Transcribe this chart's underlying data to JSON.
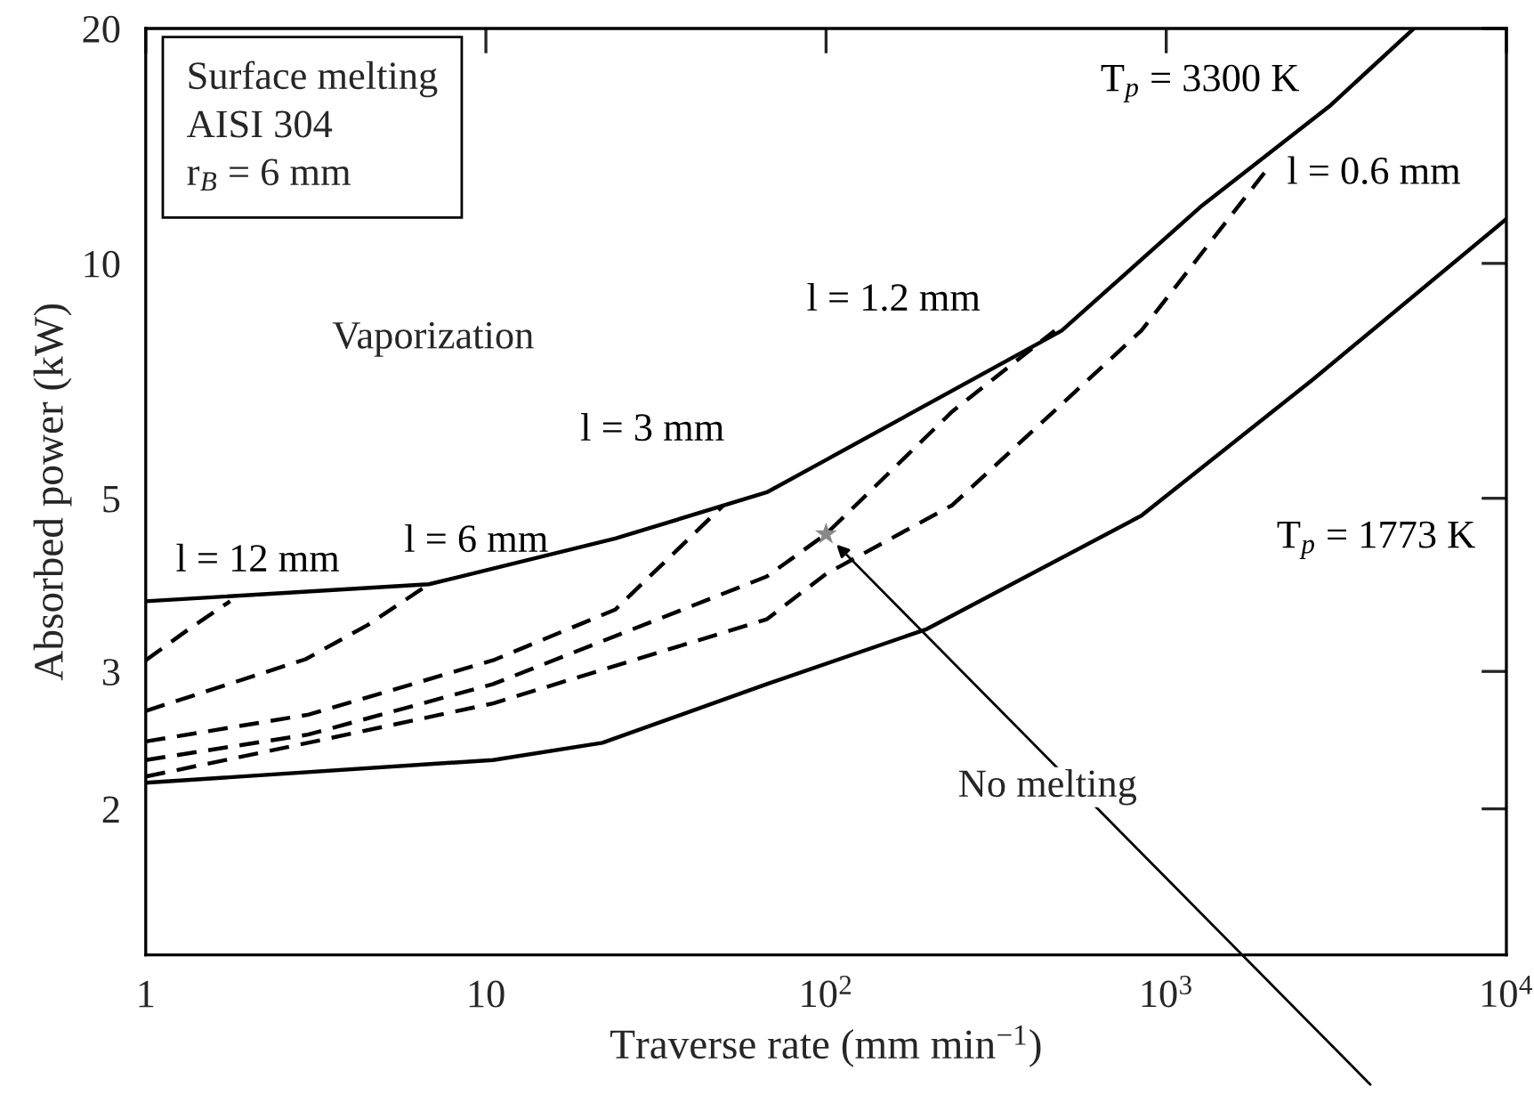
{
  "chart_data": {
    "type": "line",
    "xlabel": "Traverse rate (mm min$^{−1}$)",
    "ylabel": "Absorbed power (kW)",
    "log": "xy",
    "xlim": [
      1,
      10000
    ],
    "ylim": [
      1.3,
      20
    ],
    "xticks": [
      1,
      10,
      {
        "value": 100,
        "label": "10$^{2}$"
      },
      {
        "value": 1000,
        "label": "10$^{3}$"
      },
      {
        "value": 10000,
        "label": "10$^{4}$"
      }
    ],
    "yticks": [
      2,
      3,
      5,
      10,
      20
    ],
    "grid": false,
    "marker": "none",
    "series": [
      {
        "name": "T$_{p}$ = 3300 K",
        "color": "#000000",
        "line_style": "solid",
        "x": [
          1,
          6.8,
          24,
          67,
          100,
          493,
          1257,
          3020,
          5350
        ],
        "values": [
          3.69,
          3.88,
          4.44,
          5.09,
          5.6,
          8.2,
          11.8,
          15.9,
          20
        ]
      },
      {
        "name": "T$_{p}$ = 1773 K",
        "color": "#000000",
        "line_style": "solid",
        "x": [
          1,
          10.5,
          22,
          67,
          198,
          845,
          2700,
          10000
        ],
        "values": [
          2.16,
          2.31,
          2.43,
          2.89,
          3.4,
          4.75,
          7.1,
          11.4
        ]
      },
      {
        "name": "l = 12 mm",
        "color": "#000000",
        "line_style": "dashed",
        "x": [
          1,
          1.34,
          1.77
        ],
        "values": [
          3.1,
          3.4,
          3.69
        ]
      },
      {
        "name": "l = 6 mm",
        "color": "#000000",
        "line_style": "dashed",
        "x": [
          1,
          2.95,
          4.49,
          6.8
        ],
        "values": [
          2.67,
          3.11,
          3.44,
          3.88
        ]
      },
      {
        "name": "l = 3 mm",
        "color": "#000000",
        "line_style": "dashed",
        "x": [
          1,
          3,
          10.5,
          24,
          50
        ],
        "values": [
          2.44,
          2.64,
          3.1,
          3.6,
          4.9
        ]
      },
      {
        "name": "l = 1.2 mm",
        "color": "#000000",
        "line_style": "dashed",
        "x": [
          1,
          3,
          10.5,
          67,
          100,
          235,
          470
        ],
        "values": [
          2.31,
          2.49,
          2.89,
          3.97,
          4.5,
          6.46,
          8.2
        ]
      },
      {
        "name": "l = 0.6 mm",
        "color": "#000000",
        "line_style": "dashed",
        "x": [
          1,
          3,
          10.5,
          67,
          100,
          235,
          845,
          1980
        ],
        "values": [
          2.2,
          2.43,
          2.73,
          3.5,
          4.0,
          4.9,
          8.2,
          13.2
        ]
      },
      {
        "type": "scatter",
        "marker": "star",
        "color": "#888888",
        "x": [
          100
        ],
        "values": [
          4.5
        ]
      }
    ],
    "annotations": [
      "Surface melting\nAISI 304\nr$_{B}$ = 6 mm",
      "Vaporization",
      "No melting"
    ]
  }
}
